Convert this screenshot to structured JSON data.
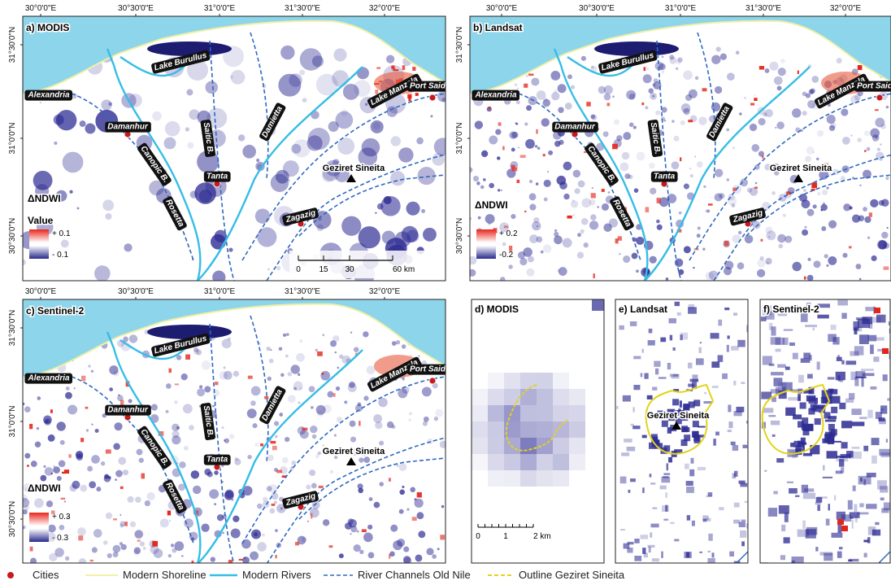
{
  "map_labels": [
    "Lake Burullus",
    "Alexandria",
    "Damanhur",
    "Canopic B.",
    "Rosetta",
    "Saitic B.",
    "Tanta",
    "Damietta",
    "Lake Manzala",
    "Port Said",
    "Geziret Sineita",
    "Zagazig"
  ],
  "longitude_ticks": [
    "30°0'0\"E",
    "30°30'0\"E",
    "31°0'0\"E",
    "31°30'0\"E",
    "32°0'0\"E"
  ],
  "latitude_ticks": [
    "31°30'0\"N",
    "31°0'0\"N",
    "30°30'0\"N"
  ],
  "panels": [
    {
      "label": "a) MODIS",
      "legend": {
        "title": "ΔNDWI",
        "subtitle": "Value",
        "high": "+ 0.1",
        "low": "- 0.1"
      },
      "scale_bar": [
        "0",
        "15",
        "30",
        "60 km"
      ]
    },
    {
      "label": "b) Landsat",
      "legend": {
        "title": "ΔNDWI",
        "high": "+ 0.2",
        "low": "-0.2"
      }
    },
    {
      "label": "c) Sentinel-2",
      "legend": {
        "title": "ΔNDWI",
        "high": "+ 0.3",
        "low": "- 0.3"
      }
    }
  ],
  "insets": [
    {
      "label": "d) MODIS",
      "scale_bar": [
        "0",
        "1",
        "2 km"
      ]
    },
    {
      "label": "e) Landsat",
      "place": "Geziret Sineita"
    },
    {
      "label": "f) Sentinel-2"
    }
  ],
  "legend": [
    "Cities",
    "Modern Shoreline",
    "Modern Rivers",
    "River Channels Old Nile",
    "Outline Geziret Sineita"
  ]
}
